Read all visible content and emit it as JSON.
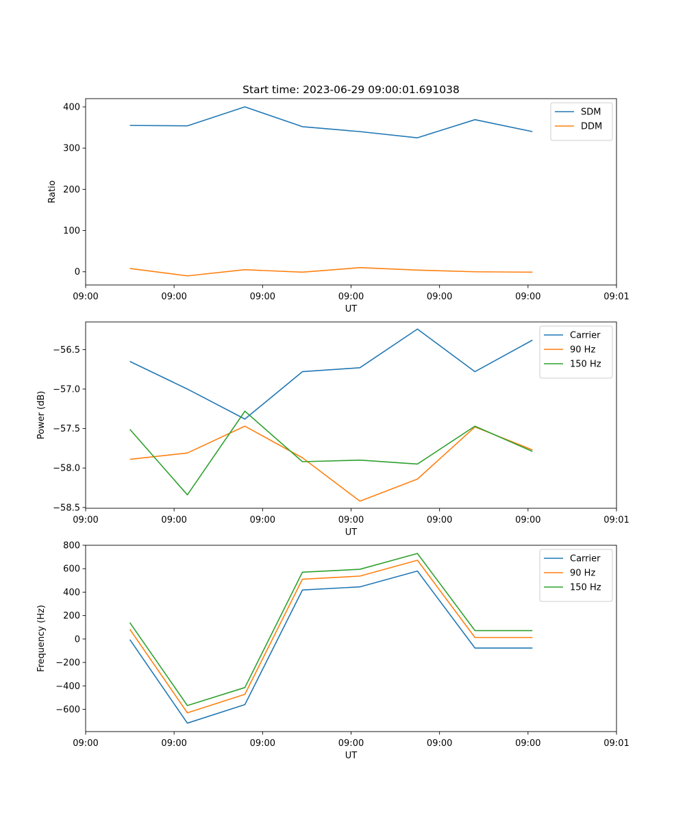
{
  "figure": {
    "title": "Start time: 2023-06-29 09:00:01.691038"
  },
  "chart_data": [
    {
      "type": "line",
      "xlabel": "UT",
      "ylabel": "Ratio",
      "x_tick_labels": [
        "09:00",
        "09:00",
        "09:00",
        "09:00",
        "09:00",
        "09:00",
        "09:01"
      ],
      "x": [
        0.5,
        1.15,
        1.8,
        2.45,
        3.1,
        3.75,
        4.4,
        5.05
      ],
      "xlim": [
        0,
        6
      ],
      "ylim": [
        -32,
        420
      ],
      "yticks": [
        0,
        100,
        200,
        300,
        400
      ],
      "ytick_labels": [
        "0",
        "100",
        "200",
        "300",
        "400"
      ],
      "legend": "top-right",
      "series": [
        {
          "name": "SDM",
          "color": "#1f77b4",
          "values": [
            355,
            354,
            400,
            352,
            340,
            325,
            369,
            340
          ]
        },
        {
          "name": "DDM",
          "color": "#ff7f0e",
          "values": [
            8,
            -10,
            5,
            -1,
            10,
            4,
            0,
            -1
          ]
        }
      ]
    },
    {
      "type": "line",
      "xlabel": "UT",
      "ylabel": "Power (dB)",
      "x_tick_labels": [
        "09:00",
        "09:00",
        "09:00",
        "09:00",
        "09:00",
        "09:00",
        "09:01"
      ],
      "x": [
        0.5,
        1.15,
        1.8,
        2.45,
        3.1,
        3.75,
        4.4,
        5.05
      ],
      "xlim": [
        0,
        6
      ],
      "ylim": [
        -58.51,
        -56.15
      ],
      "yticks": [
        -58.5,
        -58.0,
        -57.5,
        -57.0,
        -56.5
      ],
      "ytick_labels": [
        "−58.5",
        "−58.0",
        "−57.5",
        "−57.0",
        "−56.5"
      ],
      "legend": "top-right",
      "series": [
        {
          "name": "Carrier",
          "color": "#1f77b4",
          "values": [
            -56.65,
            -57.0,
            -57.38,
            -56.78,
            -56.73,
            -56.24,
            -56.78,
            -56.38
          ]
        },
        {
          "name": "90 Hz",
          "color": "#ff7f0e",
          "values": [
            -57.89,
            -57.81,
            -57.47,
            -57.87,
            -58.42,
            -58.14,
            -57.48,
            -57.77
          ]
        },
        {
          "name": "150 Hz",
          "color": "#2ca02c",
          "values": [
            -57.51,
            -58.34,
            -57.28,
            -57.92,
            -57.9,
            -57.95,
            -57.47,
            -57.79
          ]
        }
      ]
    },
    {
      "type": "line",
      "xlabel": "UT",
      "ylabel": "Frequency (Hz)",
      "x_tick_labels": [
        "09:00",
        "09:00",
        "09:00",
        "09:00",
        "09:00",
        "09:00",
        "09:01"
      ],
      "x": [
        0.5,
        1.15,
        1.8,
        2.45,
        3.1,
        3.75,
        4.4,
        5.05
      ],
      "xlim": [
        0,
        6
      ],
      "ylim": [
        -790,
        800
      ],
      "yticks": [
        -600,
        -400,
        -200,
        0,
        200,
        400,
        600,
        800
      ],
      "ytick_labels": [
        "−600",
        "−400",
        "−200",
        "0",
        "200",
        "400",
        "600",
        "800"
      ],
      "legend": "top-right",
      "series": [
        {
          "name": "Carrier",
          "color": "#1f77b4",
          "values": [
            -5,
            -718,
            -560,
            418,
            445,
            580,
            -77,
            -77
          ]
        },
        {
          "name": "90 Hz",
          "color": "#ff7f0e",
          "values": [
            83,
            -630,
            -472,
            510,
            537,
            672,
            13,
            13
          ]
        },
        {
          "name": "150 Hz",
          "color": "#2ca02c",
          "values": [
            140,
            -568,
            -414,
            570,
            595,
            730,
            72,
            72
          ]
        }
      ]
    }
  ]
}
